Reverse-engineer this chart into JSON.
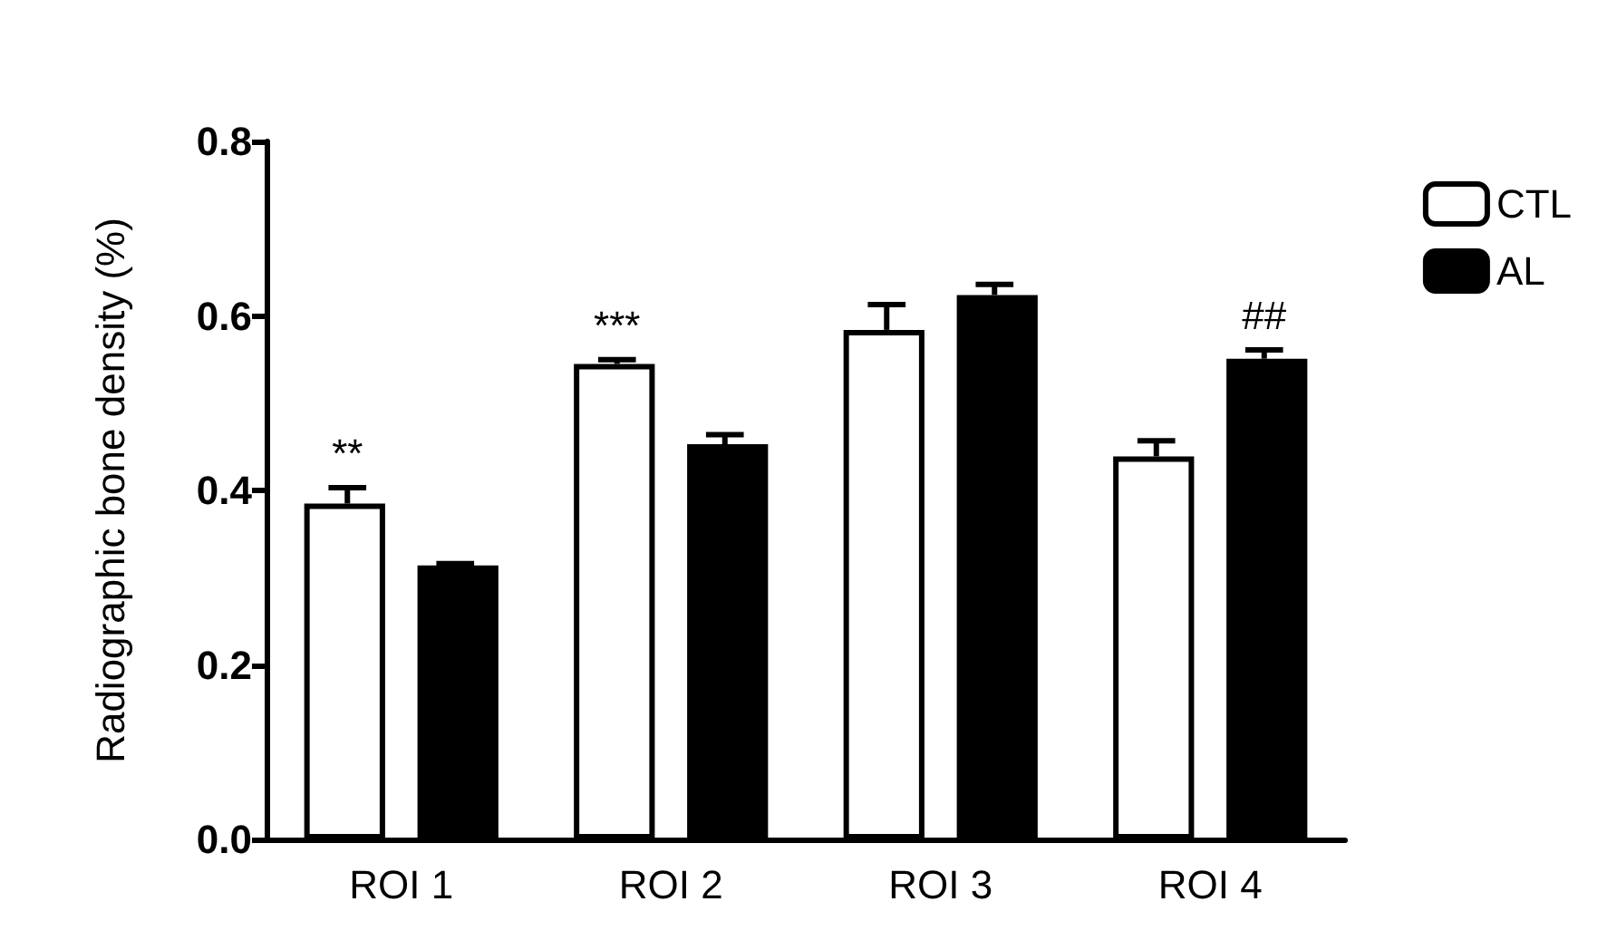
{
  "chart_data": {
    "type": "bar",
    "ylabel": "Radiographic bone density (%)",
    "categories": [
      "ROI 1",
      "ROI 2",
      "ROI 3",
      "ROI 4"
    ],
    "series": [
      {
        "name": "CTL",
        "color": "#ffffff",
        "values": [
          0.385,
          0.545,
          0.584,
          0.439
        ],
        "errors": [
          [
            0.385,
            0.403
          ],
          [
            0.545,
            0.55
          ],
          [
            0.584,
            0.613
          ],
          [
            0.439,
            0.457
          ]
        ]
      },
      {
        "name": "AL",
        "color": "#000000",
        "values": [
          0.314,
          0.453,
          0.624,
          0.551
        ],
        "errors": [
          [
            0.314,
            0.316
          ],
          [
            0.453,
            0.464
          ],
          [
            0.624,
            0.636
          ],
          [
            0.551,
            0.561
          ]
        ]
      }
    ],
    "annotations": [
      "**",
      "***",
      "##"
    ],
    "ylim": [
      0,
      0.8
    ],
    "yticks": [
      {
        "value": 0,
        "label": "0.0"
      },
      0.2,
      0.4,
      0.6,
      0.8
    ],
    "grid": false,
    "legend": "top right"
  }
}
